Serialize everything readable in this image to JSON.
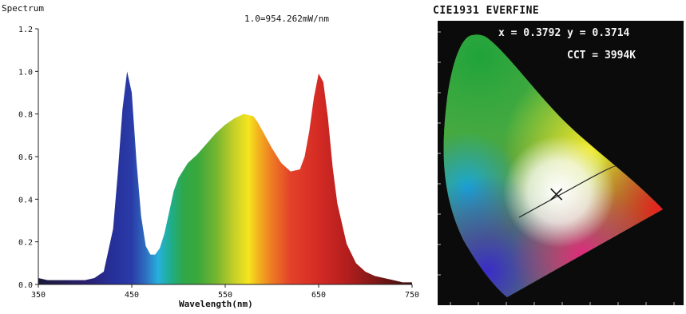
{
  "chart_data": [
    {
      "type": "line",
      "title": "Spectrum",
      "subtitle": "1.0=954.262mW/nm",
      "xlabel": "Wavelength(nm)",
      "ylabel": "",
      "xlim": [
        350,
        750
      ],
      "ylim": [
        0,
        1.2
      ],
      "x_ticks": [
        "350",
        "450",
        "550",
        "650",
        "750"
      ],
      "y_ticks": [
        "0.0",
        "0.2",
        "0.4",
        "0.6",
        "0.8",
        "1.0",
        "1.2"
      ],
      "grid": false,
      "fill": "spectral-gradient",
      "series": [
        {
          "x": [
            350,
            360,
            370,
            380,
            390,
            400,
            410,
            420,
            430,
            435,
            440,
            445,
            450,
            455,
            460,
            465,
            470,
            475,
            480,
            485,
            490,
            495,
            500,
            510,
            520,
            530,
            540,
            550,
            560,
            570,
            580,
            585,
            590,
            600,
            610,
            620,
            630,
            635,
            640,
            645,
            650,
            655,
            660,
            665,
            670,
            680,
            690,
            700,
            710,
            720,
            730,
            740,
            750
          ],
          "values": [
            0.03,
            0.02,
            0.02,
            0.02,
            0.02,
            0.02,
            0.03,
            0.06,
            0.26,
            0.52,
            0.82,
            1.0,
            0.9,
            0.58,
            0.32,
            0.18,
            0.14,
            0.14,
            0.17,
            0.24,
            0.34,
            0.44,
            0.5,
            0.57,
            0.61,
            0.66,
            0.71,
            0.75,
            0.78,
            0.8,
            0.79,
            0.76,
            0.72,
            0.64,
            0.57,
            0.53,
            0.54,
            0.6,
            0.72,
            0.88,
            0.99,
            0.95,
            0.78,
            0.55,
            0.38,
            0.19,
            0.1,
            0.06,
            0.04,
            0.03,
            0.02,
            0.01,
            0.01
          ]
        }
      ]
    },
    {
      "type": "scatter",
      "title": "CIE1931 EVERFINE",
      "readout_xy": "x = 0.3792 y = 0.3714",
      "readout_cct": "CCT = 3994K",
      "x": [
        0.3792
      ],
      "values": [
        0.3714
      ],
      "xlim": [
        0,
        0.8
      ],
      "ylim": [
        0,
        0.9
      ]
    }
  ]
}
